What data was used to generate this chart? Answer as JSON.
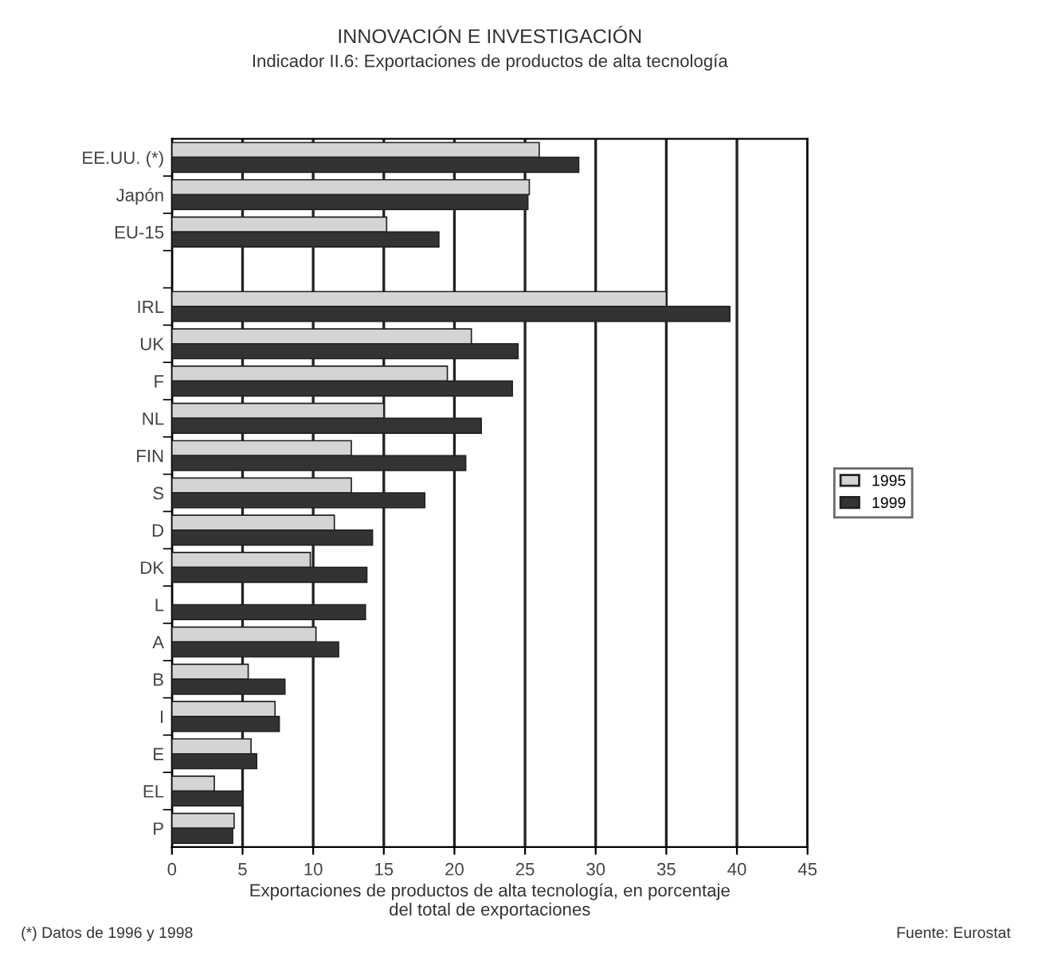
{
  "chart_data": {
    "type": "bar",
    "orientation": "horizontal",
    "title": "INNOVACIÓN E INVESTIGACIÓN",
    "subtitle": "Indicador II.6: Exportaciones de productos de alta tecnología",
    "xlabel": "Exportaciones de productos de alta tecnología, en porcentaje\ndel total de exportaciones",
    "categories": [
      "EE.UU. (*)",
      "Japón",
      "EU-15",
      null,
      "IRL",
      "UK",
      "F",
      "NL",
      "FIN",
      "S",
      "D",
      "DK",
      "L",
      "A",
      "B",
      "I",
      "E",
      "EL",
      "P"
    ],
    "series": [
      {
        "name": "1995",
        "color": "#d4d4d4",
        "values": [
          26,
          25.3,
          15.2,
          null,
          35,
          21.2,
          19.5,
          15,
          12.7,
          12.7,
          11.5,
          9.8,
          null,
          10.2,
          5.4,
          7.3,
          5.6,
          3.0,
          4.4
        ]
      },
      {
        "name": "1999",
        "color": "#333333",
        "values": [
          28.8,
          25.2,
          18.9,
          null,
          39.5,
          24.5,
          24.1,
          21.9,
          20.8,
          17.9,
          14.2,
          13.8,
          13.7,
          11.8,
          8.0,
          7.6,
          6.0,
          5.0,
          4.3
        ]
      }
    ],
    "xlim": [
      0,
      45
    ],
    "xticks": [
      0,
      5,
      10,
      15,
      20,
      25,
      30,
      35,
      40,
      45
    ],
    "grid": "x",
    "legend": "right",
    "annotations": [
      "(*) Datos de 1996 y 1998",
      "Fuente: Eurostat"
    ]
  }
}
